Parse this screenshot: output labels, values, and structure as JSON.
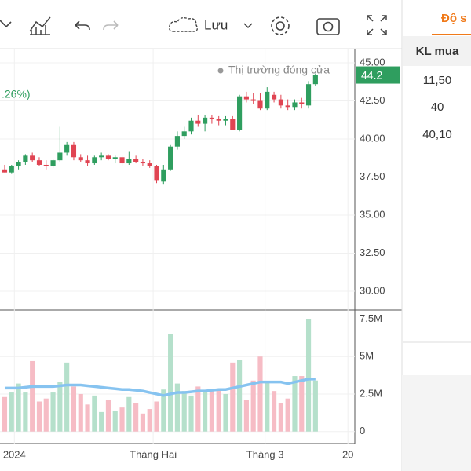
{
  "toolbar": {
    "save": "Lưu"
  },
  "panel": {
    "tab": "Độ s",
    "header": "KL mua",
    "rows": [
      "11,50",
      "40",
      "40,10"
    ]
  },
  "chart_data": {
    "type": "candlestick",
    "market_status": "Thị trường đóng cửa",
    "change_label": ".26%)",
    "last_price": 44.2,
    "open": [
      38.0,
      37.8,
      38.2,
      38.5,
      38.9,
      38.6,
      38.3,
      38.2,
      38.6,
      39.1,
      39.6,
      38.8,
      38.6,
      38.4,
      38.8,
      38.9,
      38.7,
      38.8,
      38.4,
      38.7,
      38.5,
      38.4,
      38.2,
      37.2,
      38.0,
      39.5,
      40.2,
      40.5,
      41.2,
      41.0,
      41.4,
      41.3,
      41.2,
      41.3,
      40.6,
      42.8,
      42.6,
      42.5,
      42.0,
      42.9,
      42.6,
      42.2,
      42.1,
      42.4,
      42.2,
      43.6
    ],
    "high": [
      38.3,
      38.3,
      38.6,
      39.0,
      39.1,
      38.8,
      38.6,
      38.7,
      40.8,
      39.8,
      39.8,
      39.0,
      38.9,
      38.9,
      39.1,
      39.0,
      38.9,
      38.9,
      39.2,
      38.9,
      38.7,
      38.6,
      38.3,
      38.3,
      39.6,
      40.5,
      40.8,
      41.4,
      41.6,
      41.6,
      41.6,
      41.5,
      41.5,
      41.5,
      42.9,
      43.1,
      43.0,
      43.0,
      43.4,
      43.1,
      42.9,
      42.6,
      42.6,
      42.7,
      43.8,
      44.3
    ],
    "low": [
      37.8,
      37.7,
      38.0,
      38.3,
      38.5,
      38.2,
      38.0,
      38.1,
      38.5,
      38.9,
      38.6,
      38.5,
      38.2,
      38.3,
      38.6,
      38.6,
      38.4,
      38.2,
      38.3,
      38.4,
      38.2,
      38.1,
      37.1,
      37.0,
      37.9,
      39.3,
      40.0,
      40.3,
      40.8,
      40.5,
      41.0,
      40.9,
      40.9,
      40.6,
      40.5,
      42.4,
      42.3,
      41.9,
      41.9,
      42.4,
      42.0,
      41.9,
      41.9,
      42.0,
      42.0,
      43.5
    ],
    "close": [
      37.8,
      38.2,
      38.5,
      38.9,
      38.6,
      38.3,
      38.2,
      38.6,
      39.1,
      39.6,
      38.8,
      38.6,
      38.4,
      38.8,
      38.9,
      38.7,
      38.8,
      38.4,
      38.7,
      38.5,
      38.4,
      38.2,
      37.3,
      38.0,
      39.5,
      40.2,
      40.5,
      41.2,
      41.0,
      41.4,
      41.3,
      41.2,
      41.3,
      40.6,
      42.8,
      42.6,
      42.5,
      42.0,
      43.1,
      42.6,
      42.2,
      42.1,
      42.4,
      42.3,
      43.6,
      44.2
    ],
    "volume": [
      2.3,
      2.6,
      3.2,
      2.6,
      4.7,
      2.0,
      2.2,
      2.6,
      3.3,
      4.6,
      3.0,
      2.5,
      1.8,
      2.4,
      1.3,
      2.1,
      1.4,
      1.6,
      2.3,
      1.9,
      1.2,
      1.5,
      2.0,
      2.8,
      6.5,
      3.2,
      2.7,
      2.4,
      3.0,
      2.7,
      2.7,
      2.8,
      2.5,
      4.6,
      4.8,
      2.1,
      3.4,
      5.0,
      3.3,
      2.7,
      1.9,
      2.2,
      3.7,
      3.7,
      7.5,
      3.4
    ],
    "volume_ma": [
      2.9,
      2.9,
      2.9,
      2.95,
      3.0,
      3.0,
      3.0,
      3.0,
      3.05,
      3.1,
      3.1,
      3.1,
      3.05,
      3.0,
      2.95,
      2.9,
      2.85,
      2.8,
      2.8,
      2.75,
      2.7,
      2.6,
      2.5,
      2.4,
      2.5,
      2.6,
      2.6,
      2.65,
      2.7,
      2.7,
      2.75,
      2.8,
      2.8,
      2.9,
      3.0,
      3.1,
      3.2,
      3.3,
      3.3,
      3.3,
      3.3,
      3.2,
      3.3,
      3.4,
      3.5,
      3.5
    ],
    "xlim": [
      -0.68,
      50.7
    ],
    "xticks": [
      {
        "value": 1.4,
        "label": "2024"
      },
      {
        "value": 21.5,
        "label": "Tháng Hai"
      },
      {
        "value": 37.7,
        "label": "Tháng 3"
      },
      {
        "value": 49.7,
        "label": "20"
      }
    ],
    "ylim": [
      28.76,
      45.93
    ],
    "yticks": [
      {
        "value": 30,
        "label": "30.00"
      },
      {
        "value": 32.5,
        "label": "32.50"
      },
      {
        "value": 35,
        "label": "35.00"
      },
      {
        "value": 37.5,
        "label": "37.50"
      },
      {
        "value": 40,
        "label": "40.00"
      },
      {
        "value": 42.5,
        "label": "42.50"
      },
      {
        "value": 45,
        "label": "45.00"
      }
    ],
    "vol_ylim": [
      -0.8,
      8.1
    ],
    "vol_yticks": [
      0,
      {
        "value": 2.5,
        "label": "2.5M"
      },
      {
        "value": 5,
        "label": "5M"
      },
      {
        "value": 7.5,
        "label": "7.5M"
      }
    ],
    "up_color": "#2f9e5f",
    "down_color": "#e04452",
    "vol_up_color": "#b5e0cb",
    "vol_down_color": "#f6bcc5",
    "ma_color": "#86c3f0",
    "grid": true
  }
}
